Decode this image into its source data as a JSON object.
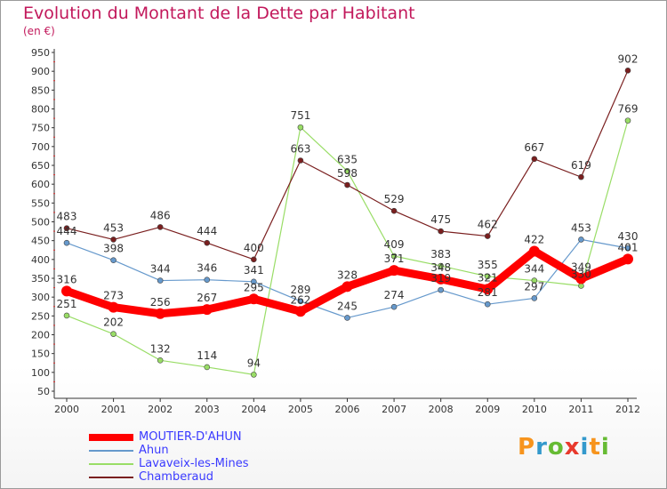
{
  "title": "Evolution du Montant de la Dette par Habitant",
  "unit_label": "(en €)",
  "logo_text": "Proxiti",
  "chart_data": {
    "type": "line",
    "title": "Evolution du Montant de la Dette par Habitant",
    "ylabel": "(en €)",
    "xlabel": "",
    "x": [
      2000,
      2001,
      2002,
      2003,
      2004,
      2005,
      2006,
      2007,
      2008,
      2009,
      2010,
      2011,
      2012
    ],
    "ylim": [
      50,
      950
    ],
    "yticks": [
      50,
      100,
      150,
      200,
      250,
      300,
      350,
      400,
      450,
      500,
      550,
      600,
      650,
      700,
      750,
      800,
      850,
      900,
      950
    ],
    "grid": false,
    "legend_position": "bottom-left",
    "series": [
      {
        "name": "MOUTIER-D'AHUN",
        "color": "#ff0000",
        "values": [
          316,
          273,
          256,
          267,
          295,
          262,
          328,
          371,
          348,
          321,
          422,
          349,
          401
        ]
      },
      {
        "name": "Ahun",
        "color": "#6699cc",
        "values": [
          444,
          398,
          344,
          346,
          341,
          289,
          245,
          274,
          319,
          281,
          297,
          453,
          430
        ]
      },
      {
        "name": "Lavaveix-les-Mines",
        "color": "#99dd66",
        "values": [
          251,
          202,
          132,
          114,
          94,
          751,
          635,
          409,
          383,
          355,
          344,
          330,
          769
        ]
      },
      {
        "name": "Chamberaud",
        "color": "#7a1f1f",
        "values": [
          483,
          453,
          486,
          444,
          400,
          663,
          598,
          529,
          475,
          462,
          667,
          619,
          902
        ]
      }
    ]
  }
}
